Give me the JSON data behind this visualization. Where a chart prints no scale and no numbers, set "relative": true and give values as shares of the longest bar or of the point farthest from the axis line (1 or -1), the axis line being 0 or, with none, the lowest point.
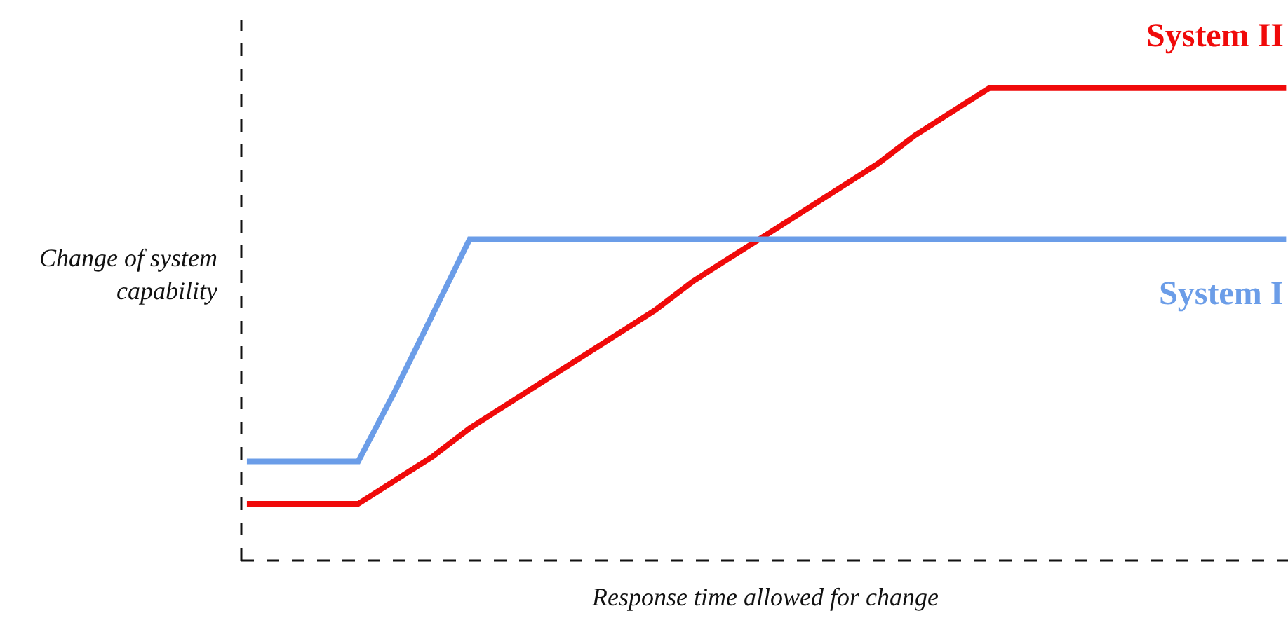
{
  "chart_data": {
    "type": "line",
    "relative": true,
    "xlabel": "Response time allowed for change",
    "ylabel": "Change of system capability",
    "legend": false,
    "marker": "none",
    "categories": [
      null,
      null,
      null,
      null,
      null,
      null,
      null,
      null,
      null,
      null,
      null,
      null,
      null,
      null,
      null,
      null,
      null,
      null,
      null,
      null,
      null,
      null,
      null,
      null,
      null,
      null,
      null,
      null,
      null
    ],
    "series": [
      {
        "name": "System II",
        "color": "#f00a0a",
        "values": [
          0.12,
          0.12,
          0.12,
          0.12,
          0.17,
          0.22,
          0.28,
          0.33,
          0.38,
          0.43,
          0.48,
          0.53,
          0.59,
          0.64,
          0.69,
          0.74,
          0.79,
          0.84,
          0.9,
          0.95,
          1.0,
          1.0,
          1.0,
          1.0,
          1.0,
          1.0,
          1.0,
          1.0,
          1.0
        ]
      },
      {
        "name": "System I",
        "color": "#6b9de8",
        "values": [
          0.21,
          0.21,
          0.21,
          0.21,
          0.36,
          0.52,
          0.68,
          0.68,
          0.68,
          0.68,
          0.68,
          0.68,
          0.68,
          0.68,
          0.68,
          0.68,
          0.68,
          0.68,
          0.68,
          0.68,
          0.68,
          0.68,
          0.68,
          0.68,
          0.68,
          0.68,
          0.68,
          0.68,
          0.68
        ]
      }
    ]
  }
}
